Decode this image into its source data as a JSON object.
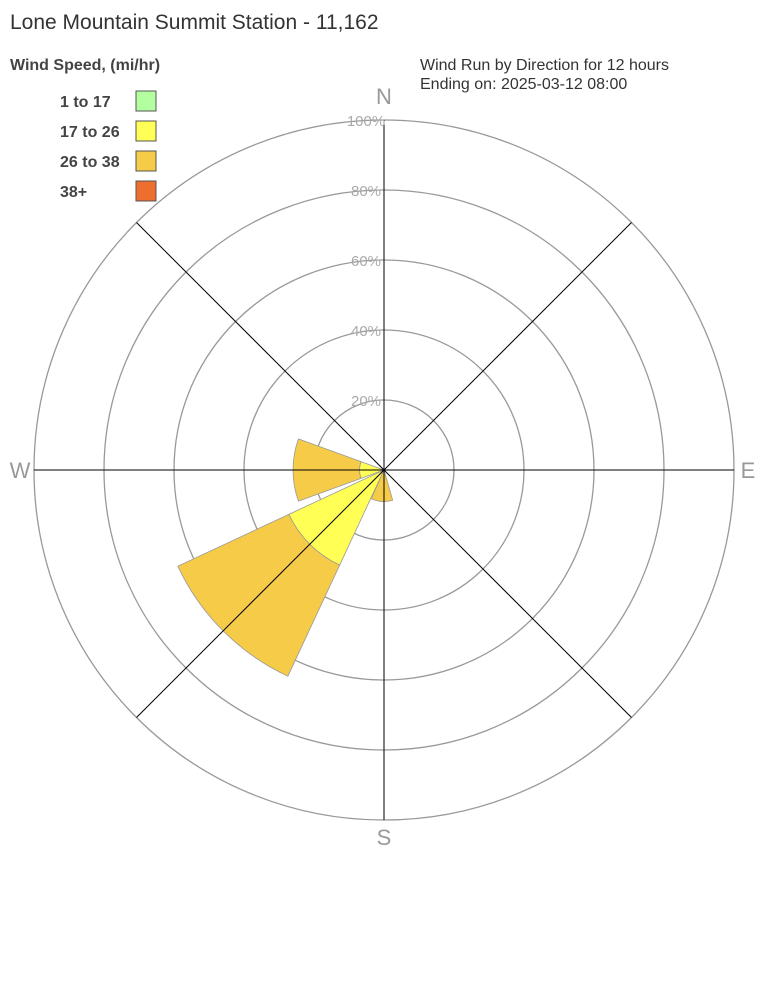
{
  "chart_data": {
    "type": "windrose",
    "title": "Lone Mountain Summit Station - 11,162",
    "subtitle_lines": [
      "Wind Run by Direction for 12 hours",
      "Ending on: 2025-03-12 08:00"
    ],
    "legend_title": "Wind Speed, (mi/hr)",
    "legend_placement": "top-left",
    "bins": [
      {
        "label": "1 to 17",
        "color": "#b3ffa0"
      },
      {
        "label": "17 to 26",
        "color": "#ffff55"
      },
      {
        "label": "26 to 38",
        "color": "#f6cb48"
      },
      {
        "label": "38+",
        "color": "#ee6f2d"
      }
    ],
    "radial_ticks": [
      "20%",
      "40%",
      "60%",
      "80%",
      "100%"
    ],
    "radial_max": 100,
    "compass": [
      "N",
      "E",
      "S",
      "W"
    ],
    "directions": [
      {
        "dir": "W",
        "angle": 270,
        "cumulative": [
          0,
          7,
          26,
          26
        ]
      },
      {
        "dir": "SW",
        "angle": 225,
        "cumulative": [
          0,
          30,
          65,
          65
        ]
      },
      {
        "dir": "S",
        "angle": 184,
        "cumulative": [
          0,
          0,
          9,
          9
        ]
      }
    ]
  }
}
